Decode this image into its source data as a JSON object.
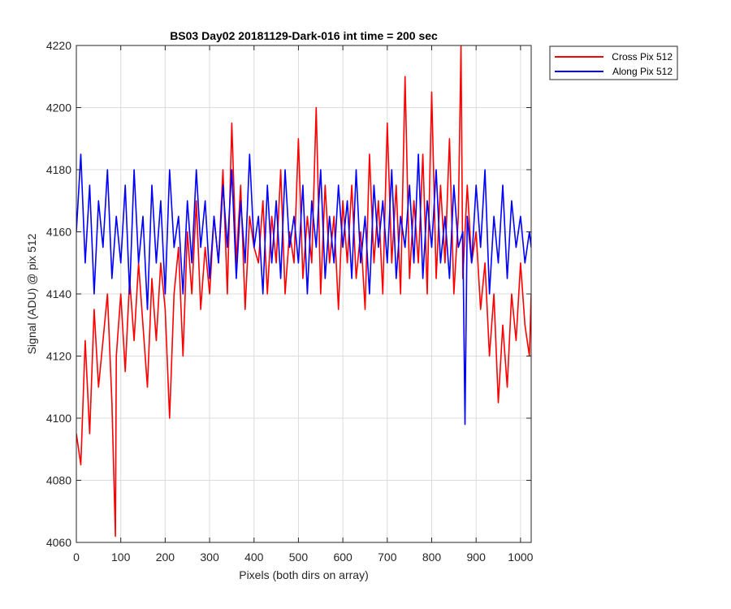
{
  "chart_data": {
    "type": "line",
    "title": "BS03 Day02 20181129-Dark-016 int time = 200 sec",
    "xlabel": "Pixels (both dirs on array)",
    "ylabel": "Signal (ADU) @ pix 512",
    "xlim": [
      0,
      1024
    ],
    "ylim": [
      4060,
      4220
    ],
    "xticks": [
      "0",
      "100",
      "200",
      "300",
      "400",
      "500",
      "600",
      "700",
      "800",
      "900",
      "1000"
    ],
    "yticks": [
      "4060",
      "4080",
      "4100",
      "4120",
      "4140",
      "4160",
      "4180",
      "4200",
      "4220"
    ],
    "grid": true,
    "legend": "outside-top-right",
    "series": [
      {
        "name": "Cross Pix 512",
        "color": "#ff0000",
        "x": [
          0,
          10,
          20,
          30,
          40,
          50,
          60,
          70,
          80,
          88,
          90,
          100,
          110,
          120,
          130,
          140,
          150,
          160,
          170,
          180,
          190,
          200,
          210,
          220,
          230,
          240,
          250,
          260,
          270,
          280,
          290,
          300,
          310,
          320,
          330,
          340,
          350,
          360,
          370,
          380,
          390,
          400,
          410,
          420,
          430,
          440,
          450,
          460,
          470,
          480,
          490,
          500,
          510,
          520,
          530,
          540,
          550,
          560,
          570,
          580,
          590,
          600,
          610,
          620,
          630,
          640,
          650,
          660,
          670,
          680,
          690,
          700,
          710,
          720,
          730,
          740,
          750,
          760,
          770,
          780,
          790,
          800,
          810,
          820,
          830,
          840,
          850,
          860,
          866,
          870,
          880,
          890,
          900,
          910,
          920,
          930,
          940,
          950,
          960,
          970,
          980,
          990,
          1000,
          1010,
          1020,
          1024
        ],
        "y": [
          4095,
          4085,
          4125,
          4095,
          4135,
          4110,
          4125,
          4140,
          4105,
          4062,
          4120,
          4140,
          4115,
          4145,
          4125,
          4150,
          4130,
          4110,
          4145,
          4125,
          4150,
          4135,
          4100,
          4140,
          4155,
          4120,
          4160,
          4140,
          4170,
          4135,
          4155,
          4140,
          4165,
          4150,
          4180,
          4140,
          4195,
          4150,
          4175,
          4135,
          4165,
          4155,
          4150,
          4170,
          4140,
          4165,
          4150,
          4180,
          4140,
          4160,
          4150,
          4190,
          4145,
          4165,
          4150,
          4200,
          4140,
          4175,
          4150,
          4165,
          4135,
          4170,
          4150,
          4175,
          4145,
          4160,
          4135,
          4185,
          4150,
          4170,
          4140,
          4195,
          4150,
          4175,
          4140,
          4210,
          4145,
          4170,
          4150,
          4185,
          4140,
          4205,
          4145,
          4175,
          4150,
          4190,
          4140,
          4165,
          4220,
          4145,
          4175,
          4150,
          4160,
          4135,
          4150,
          4120,
          4140,
          4105,
          4130,
          4110,
          4140,
          4125,
          4150,
          4130,
          4120,
          4140
        ]
      },
      {
        "name": "Along Pix 512",
        "color": "#0000ff",
        "x": [
          0,
          10,
          20,
          30,
          40,
          50,
          60,
          70,
          80,
          90,
          100,
          110,
          120,
          130,
          140,
          150,
          160,
          170,
          180,
          190,
          200,
          210,
          220,
          230,
          240,
          250,
          260,
          270,
          280,
          290,
          300,
          310,
          320,
          330,
          340,
          350,
          360,
          370,
          380,
          390,
          400,
          410,
          420,
          430,
          440,
          450,
          460,
          470,
          480,
          490,
          500,
          510,
          520,
          530,
          540,
          550,
          560,
          570,
          580,
          590,
          600,
          610,
          620,
          630,
          640,
          650,
          660,
          670,
          680,
          690,
          700,
          710,
          720,
          730,
          740,
          750,
          760,
          770,
          780,
          790,
          800,
          810,
          820,
          830,
          840,
          850,
          860,
          870,
          875,
          880,
          890,
          900,
          910,
          920,
          930,
          940,
          950,
          960,
          970,
          980,
          990,
          1000,
          1010,
          1020,
          1024
        ],
        "y": [
          4160,
          4185,
          4150,
          4175,
          4140,
          4170,
          4155,
          4180,
          4145,
          4165,
          4150,
          4175,
          4140,
          4180,
          4150,
          4165,
          4135,
          4175,
          4150,
          4170,
          4140,
          4180,
          4155,
          4165,
          4140,
          4170,
          4150,
          4180,
          4155,
          4170,
          4145,
          4165,
          4150,
          4175,
          4155,
          4180,
          4145,
          4170,
          4150,
          4185,
          4155,
          4165,
          4140,
          4175,
          4150,
          4170,
          4145,
          4180,
          4155,
          4165,
          4150,
          4175,
          4140,
          4170,
          4155,
          4180,
          4145,
          4165,
          4150,
          4175,
          4155,
          4170,
          4145,
          4180,
          4150,
          4165,
          4140,
          4175,
          4155,
          4170,
          4150,
          4180,
          4145,
          4165,
          4155,
          4175,
          4150,
          4185,
          4145,
          4170,
          4155,
          4180,
          4150,
          4165,
          4145,
          4175,
          4155,
          4160,
          4098,
          4165,
          4150,
          4175,
          4155,
          4180,
          4140,
          4165,
          4150,
          4175,
          4145,
          4170,
          4155,
          4165,
          4150,
          4160,
          4155
        ]
      }
    ]
  }
}
